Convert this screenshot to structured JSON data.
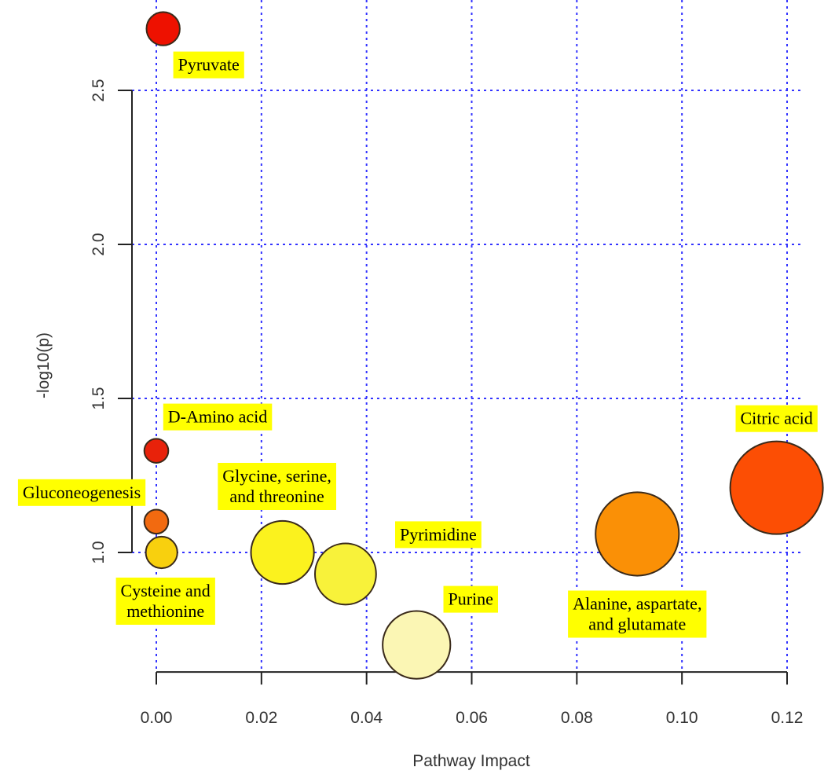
{
  "chart_data": {
    "type": "scatter",
    "title": "",
    "xlabel": "Pathway Impact",
    "ylabel": "-log10(p)",
    "xlim": [
      0.0,
      0.12
    ],
    "ylim": [
      0.612,
      2.75
    ],
    "x_ticks": [
      0.0,
      0.02,
      0.04,
      0.06,
      0.08,
      0.1,
      0.12
    ],
    "x_tick_labels": [
      "0.00",
      "0.02",
      "0.04",
      "0.06",
      "0.08",
      "0.10",
      "0.12"
    ],
    "y_ticks": [
      1.0,
      1.5,
      2.0,
      2.5
    ],
    "y_tick_labels": [
      "1.0",
      "1.5",
      "2.0",
      "2.5"
    ],
    "grid": true,
    "grid_color": "#3333ff",
    "label_bg_color": "#ffff00",
    "points": [
      {
        "name": "Pyruvate",
        "label_lines": [
          "Pyruvate"
        ],
        "x": 0.0013,
        "y": 2.7,
        "size": 0.36,
        "color": "#ee1100",
        "label_pos": "below-right"
      },
      {
        "name": "D-Amino acid",
        "label_lines": [
          "D-Amino acid"
        ],
        "x": 0.0,
        "y": 1.33,
        "size": 0.26,
        "color": "#e8220a",
        "label_pos": "above"
      },
      {
        "name": "Gluconeogenesis",
        "label_lines": [
          "Gluconeogenesis"
        ],
        "x": 0.0,
        "y": 1.1,
        "size": 0.26,
        "color": "#f26a10",
        "label_pos": "above-left"
      },
      {
        "name": "Cysteine and methionine",
        "label_lines": [
          "Cysteine and",
          "methionine"
        ],
        "x": 0.001,
        "y": 1.0,
        "size": 0.34,
        "color": "#f8d00e",
        "label_pos": "below"
      },
      {
        "name": "Glycine, serine, and threonine",
        "label_lines": [
          "Glycine, serine,",
          "and threonine"
        ],
        "x": 0.024,
        "y": 1.0,
        "size": 0.68,
        "color": "#fbf21e",
        "label_pos": "above"
      },
      {
        "name": "Pyrimidine",
        "label_lines": [
          "Pyrimidine"
        ],
        "x": 0.036,
        "y": 0.93,
        "size": 0.66,
        "color": "#f8f23a",
        "label_pos": "above-right"
      },
      {
        "name": "Purine",
        "label_lines": [
          "Purine"
        ],
        "x": 0.0495,
        "y": 0.7,
        "size": 0.73,
        "color": "#fbf6b4",
        "label_pos": "above-right"
      },
      {
        "name": "Alanine, aspartate, and glutamate",
        "label_lines": [
          "Alanine, aspartate,",
          "and glutamate"
        ],
        "x": 0.0915,
        "y": 1.06,
        "size": 0.9,
        "color": "#fa9006",
        "label_pos": "below"
      },
      {
        "name": "Citric acid",
        "label_lines": [
          "Citric acid"
        ],
        "x": 0.118,
        "y": 1.21,
        "size": 1.0,
        "color": "#fc4e04",
        "label_pos": "above"
      }
    ]
  }
}
